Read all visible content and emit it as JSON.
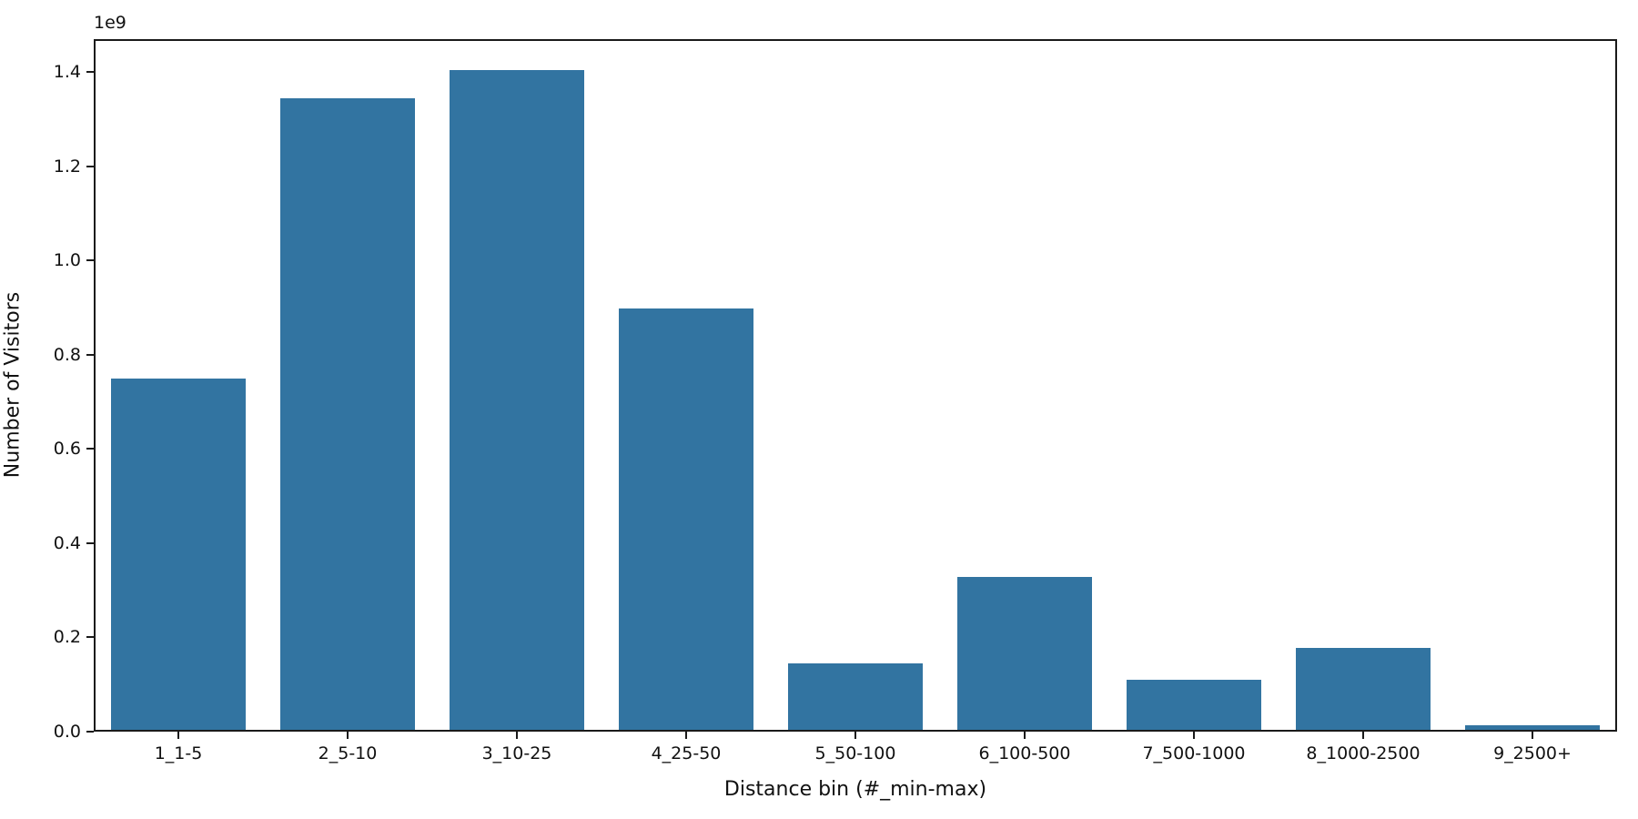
{
  "chart_data": {
    "type": "bar",
    "title": "",
    "xlabel": "Distance bin (#_min-max)",
    "ylabel": "Number of Visitors",
    "y_offset_label": "1e9",
    "categories": [
      "1_1-5",
      "2_5-10",
      "3_10-25",
      "4_25-50",
      "5_50-100",
      "6_100-500",
      "7_500-1000",
      "8_1000-2500",
      "9_2500+"
    ],
    "values": [
      745000000,
      1340000000,
      1400000000,
      895000000,
      142000000,
      325000000,
      107000000,
      173000000,
      10000000
    ],
    "ylim": [
      0,
      1470000000
    ],
    "yticks": [
      0,
      200000000,
      400000000,
      600000000,
      800000000,
      1000000000,
      1200000000,
      1400000000
    ],
    "ytick_labels": [
      "0.0",
      "0.2",
      "0.4",
      "0.6",
      "0.8",
      "1.0",
      "1.2",
      "1.4"
    ],
    "bar_color": "#3274a1",
    "bar_width_fraction": 0.8,
    "grid": false,
    "legend_position": "none",
    "spine_color": "#1a1a1a",
    "background_color": "#ffffff"
  }
}
